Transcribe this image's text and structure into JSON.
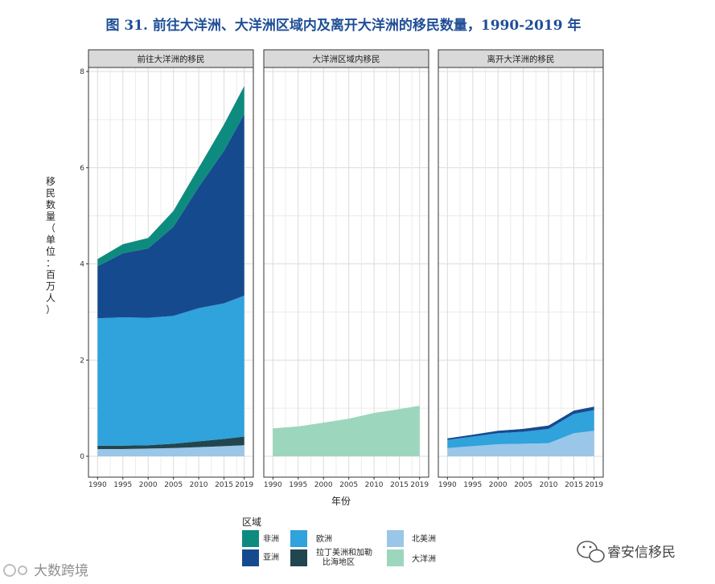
{
  "chart_data": {
    "type": "area",
    "title": "图 31. 前往大洋洲、大洋洲区域内及离开大洋洲的移民数量，1990-2019 年",
    "xlabel": "年份",
    "ylabel": "移民数量（单位：百万人）",
    "ylim": [
      0,
      8
    ],
    "y_ticks": [
      "0",
      "2",
      "4",
      "6",
      "8"
    ],
    "x": [
      1990,
      1995,
      2000,
      2005,
      2010,
      2015,
      2019
    ],
    "x_tick_labels": [
      "1990",
      "1995",
      "2000",
      "2005",
      "2010",
      "2015",
      "2019"
    ],
    "legend_title": "区域",
    "legend": [
      {
        "key": "africa",
        "label": "非洲",
        "color": "#0e8b7f"
      },
      {
        "key": "asia",
        "label": "亚洲",
        "color": "#164a8f"
      },
      {
        "key": "europe",
        "label": "欧洲",
        "color": "#30a2dc"
      },
      {
        "key": "latam",
        "label": "拉丁美洲和加勒比海地区",
        "label_lines": [
          "拉丁美洲和加勒",
          "比海地区"
        ],
        "color": "#22464f"
      },
      {
        "key": "namerica",
        "label": "北美洲",
        "color": "#9ac6e8"
      },
      {
        "key": "oceania",
        "label": "大洋洲",
        "color": "#9cd6bc"
      }
    ],
    "panels": [
      {
        "title": "前往大洋洲的移民",
        "stack_order_bottom_to_top": [
          "namerica",
          "latam",
          "europe",
          "asia",
          "africa"
        ],
        "series": [
          {
            "key": "namerica",
            "name": "北美洲",
            "values": [
              0.15,
              0.15,
              0.16,
              0.17,
              0.19,
              0.21,
              0.23
            ]
          },
          {
            "key": "latam",
            "name": "拉丁美洲和加勒比海地区",
            "values": [
              0.07,
              0.07,
              0.07,
              0.09,
              0.12,
              0.15,
              0.18
            ]
          },
          {
            "key": "europe",
            "name": "欧洲",
            "values": [
              2.65,
              2.67,
              2.65,
              2.66,
              2.77,
              2.82,
              2.93
            ]
          },
          {
            "key": "asia",
            "name": "亚洲",
            "values": [
              1.08,
              1.33,
              1.44,
              1.85,
              2.52,
              3.17,
              3.77
            ]
          },
          {
            "key": "africa",
            "name": "非洲",
            "values": [
              0.15,
              0.19,
              0.22,
              0.33,
              0.4,
              0.55,
              0.59
            ]
          }
        ]
      },
      {
        "title": "大洋洲区域内移民",
        "stack_order_bottom_to_top": [
          "oceania"
        ],
        "series": [
          {
            "key": "oceania",
            "name": "大洋洲",
            "values": [
              0.58,
              0.62,
              0.7,
              0.78,
              0.9,
              0.98,
              1.05
            ]
          }
        ]
      },
      {
        "title": "离开大洋洲的移民",
        "stack_order_bottom_to_top": [
          "namerica",
          "europe",
          "asia"
        ],
        "series": [
          {
            "key": "namerica",
            "name": "北美洲",
            "values": [
              0.17,
              0.21,
              0.25,
              0.26,
              0.27,
              0.48,
              0.53
            ]
          },
          {
            "key": "europe",
            "name": "欧洲",
            "values": [
              0.17,
              0.2,
              0.23,
              0.25,
              0.3,
              0.4,
              0.43
            ]
          },
          {
            "key": "asia",
            "name": "亚洲",
            "values": [
              0.03,
              0.04,
              0.05,
              0.06,
              0.07,
              0.07,
              0.07
            ]
          }
        ]
      }
    ]
  },
  "watermarks": {
    "left": "大数跨境",
    "right": "睿安信移民"
  }
}
